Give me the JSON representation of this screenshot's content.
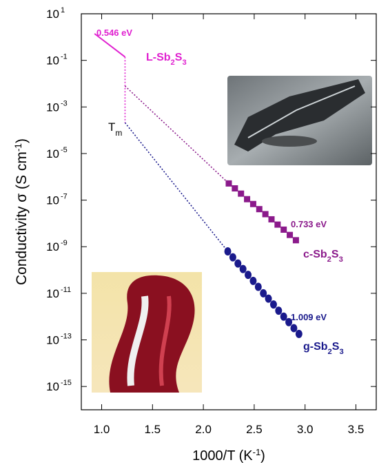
{
  "chart_data": {
    "type": "scatter",
    "x_label": "1000/T (K-1)",
    "y_label": "Conductivity σ (S cm-1)",
    "xlim": [
      0.8,
      3.7
    ],
    "xticks": [
      1.0,
      1.5,
      2.0,
      2.5,
      3.0,
      3.5
    ],
    "ylim": [
      1e-16,
      10
    ],
    "log_y": true,
    "yticks": [
      {
        "value": 10,
        "label": "10",
        "exponent": "1"
      },
      {
        "value": 0.1,
        "label": "10",
        "exponent": "-1"
      },
      {
        "value": 0.001,
        "label": "10",
        "exponent": "-3"
      },
      {
        "value": 1e-05,
        "label": "10",
        "exponent": "-5"
      },
      {
        "value": 1e-07,
        "label": "10",
        "exponent": "-7"
      },
      {
        "value": 1e-09,
        "label": "10",
        "exponent": "-9"
      },
      {
        "value": 1e-11,
        "label": "10",
        "exponent": "-11"
      },
      {
        "value": 1e-13,
        "label": "10",
        "exponent": "-13"
      },
      {
        "value": 1e-15,
        "label": "10",
        "exponent": "-15"
      }
    ],
    "series": [
      {
        "name": "L-Sb2S3",
        "color": "#e020d0",
        "marker": "line",
        "x": [
          0.93,
          1.23
        ],
        "values": [
          1.4,
          0.14
        ]
      },
      {
        "name": "c-Sb2S3",
        "color": "#8b1a8b",
        "marker": "square",
        "x": [
          2.25,
          2.31,
          2.37,
          2.43,
          2.49,
          2.55,
          2.61,
          2.67,
          2.73,
          2.79,
          2.85,
          2.91
        ],
        "values": [
          5.2e-07,
          3.2e-07,
          1.9e-07,
          1.1e-07,
          6.8e-08,
          4.1e-08,
          2.5e-08,
          1.5e-08,
          8.9e-09,
          5.4e-09,
          3.2e-09,
          1.9e-09
        ]
      },
      {
        "name": "g-Sb2S3",
        "color": "#1a1a8c",
        "marker": "circle",
        "x": [
          2.24,
          2.29,
          2.34,
          2.39,
          2.44,
          2.49,
          2.54,
          2.59,
          2.64,
          2.69,
          2.74,
          2.79,
          2.84,
          2.89,
          2.94
        ],
        "values": [
          6.3e-10,
          3.5e-10,
          1.9e-10,
          1.1e-10,
          6.2e-11,
          3.4e-11,
          1.9e-11,
          1e-11,
          5.9e-12,
          3.3e-12,
          1.8e-12,
          1e-12,
          5.8e-13,
          3.2e-13,
          1.8e-13
        ]
      }
    ],
    "dotted_lines": [
      {
        "color": "#e020d0",
        "x": [
          1.23,
          1.23
        ],
        "values": [
          0.14,
          0.00021
        ]
      },
      {
        "color": "#8b1a8b",
        "x": [
          1.23,
          2.25
        ],
        "values": [
          0.0079,
          5.2e-07
        ]
      },
      {
        "color": "#1a1a8c",
        "x": [
          1.23,
          2.24
        ],
        "values": [
          0.00021,
          6.3e-10
        ]
      }
    ],
    "annotations": [
      {
        "text": "0.546 eV",
        "color": "#e020d0"
      },
      {
        "text": "0.733 eV",
        "color": "#8b1a8b"
      },
      {
        "text": "1.009 eV",
        "color": "#1a1a8c"
      },
      {
        "text": "Tm",
        "color": "#000000"
      }
    ]
  }
}
